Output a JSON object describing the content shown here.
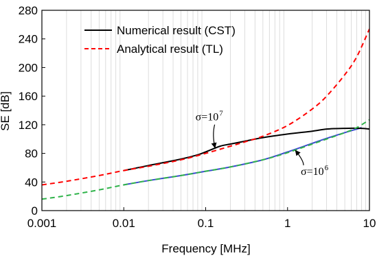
{
  "chart_data": {
    "type": "line",
    "xlabel": "Frequency [MHz]",
    "ylabel": "SE [dB]",
    "xscale": "log",
    "xlim": [
      0.001,
      10
    ],
    "ylim": [
      0,
      280
    ],
    "x_ticks": [
      0.001,
      0.01,
      0.1,
      1,
      10
    ],
    "x_tick_labels": [
      "0.001",
      "0.01",
      "0.1",
      "1",
      "10"
    ],
    "y_ticks": [
      0,
      40,
      80,
      120,
      160,
      200,
      240,
      280
    ],
    "y_tick_labels": [
      "0",
      "40",
      "80",
      "120",
      "160",
      "200",
      "240",
      "280"
    ],
    "grid": "vertical minor gridlines on log x-axis",
    "legend": {
      "position": "top-left",
      "entries": [
        {
          "label": "Numerical result (CST)",
          "color": "#000000",
          "style": "solid"
        },
        {
          "label": "Analytical result (TL)",
          "color": "#ff0000",
          "style": "dashed"
        }
      ]
    },
    "series": [
      {
        "name": "Numerical result (CST)",
        "sigma": "σ=10^7",
        "color": "#000000",
        "style": "solid",
        "x": [
          0.01,
          0.02,
          0.05,
          0.08,
          0.1,
          0.15,
          0.2,
          0.3,
          0.5,
          1,
          2,
          3,
          5,
          8,
          10
        ],
        "y": [
          56,
          63,
          72,
          78,
          82,
          90,
          93,
          97,
          102,
          107,
          111,
          114,
          115,
          115,
          114
        ]
      },
      {
        "name": "Analytical result (TL)",
        "sigma": "σ=10^7",
        "color": "#ff0000",
        "style": "dashed",
        "x": [
          0.001,
          0.002,
          0.005,
          0.01,
          0.02,
          0.05,
          0.1,
          0.2,
          0.3,
          0.5,
          1,
          2,
          3,
          5,
          7,
          10
        ],
        "y": [
          36,
          41,
          49,
          56,
          62,
          71,
          80,
          90,
          96,
          104,
          119,
          142,
          160,
          190,
          215,
          254
        ]
      },
      {
        "name": "Numerical result (CST)",
        "sigma": "σ=10^6",
        "color": "#3c4bd0",
        "style": "solid",
        "x": [
          0.01,
          0.02,
          0.05,
          0.1,
          0.2,
          0.5,
          1,
          2,
          3,
          5,
          7,
          8
        ],
        "y": [
          36,
          42,
          49,
          55,
          61,
          71,
          82,
          94,
          101,
          109,
          114,
          116
        ]
      },
      {
        "name": "Analytical result (TL)",
        "sigma": "σ=10^6",
        "color": "#2fb34a",
        "style": "dashed",
        "x": [
          0.001,
          0.002,
          0.005,
          0.01,
          0.02,
          0.05,
          0.1,
          0.2,
          0.5,
          1,
          2,
          3,
          5,
          7,
          10
        ],
        "y": [
          16,
          21,
          29,
          36,
          42,
          49,
          55,
          61,
          71,
          81,
          93,
          100,
          109,
          116,
          127
        ]
      }
    ],
    "annotations": [
      {
        "base": "σ=10",
        "sup": "7",
        "points_to": {
          "x": 0.13,
          "y": 88
        },
        "text_at": {
          "x": 0.075,
          "y": 126
        }
      },
      {
        "base": "σ=10",
        "sup": "6",
        "points_to": {
          "x": 1.25,
          "y": 84
        },
        "text_at": {
          "x": 1.45,
          "y": 50
        }
      }
    ]
  }
}
